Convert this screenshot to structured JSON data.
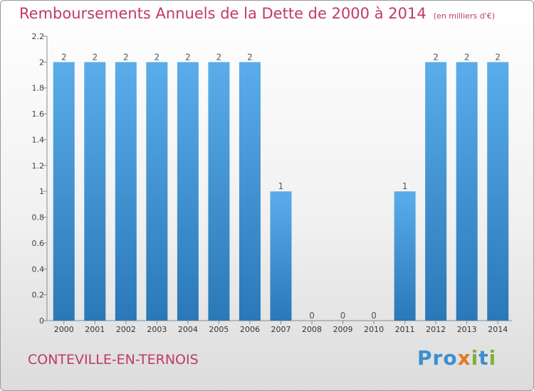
{
  "chart_data": {
    "type": "bar",
    "title": "Remboursements Annuels de la Dette de 2000 à 2014",
    "unit_label": "(en milliers d'€)",
    "categories": [
      "2000",
      "2001",
      "2002",
      "2003",
      "2004",
      "2005",
      "2006",
      "2007",
      "2008",
      "2009",
      "2010",
      "2011",
      "2012",
      "2013",
      "2014"
    ],
    "values": [
      2,
      2,
      2,
      2,
      2,
      2,
      2,
      1,
      0,
      0,
      0,
      1,
      2,
      2,
      2
    ],
    "data_labels": [
      "2",
      "2",
      "2",
      "2",
      "2",
      "2",
      "2",
      "1",
      "0",
      "0",
      "0",
      "1",
      "2",
      "2",
      "2"
    ],
    "yticks": [
      "0",
      "0.2",
      "0.4",
      "0.6",
      "0.8",
      "1",
      "1.2",
      "1.4",
      "1.6",
      "1.8",
      "2",
      "2.2"
    ],
    "ylim": [
      0,
      2.2
    ],
    "grid": false,
    "bar_color": "#4a9de0"
  },
  "footer": {
    "commune": "CONTEVILLE-EN-TERNOIS",
    "brand": "Proxiti"
  }
}
